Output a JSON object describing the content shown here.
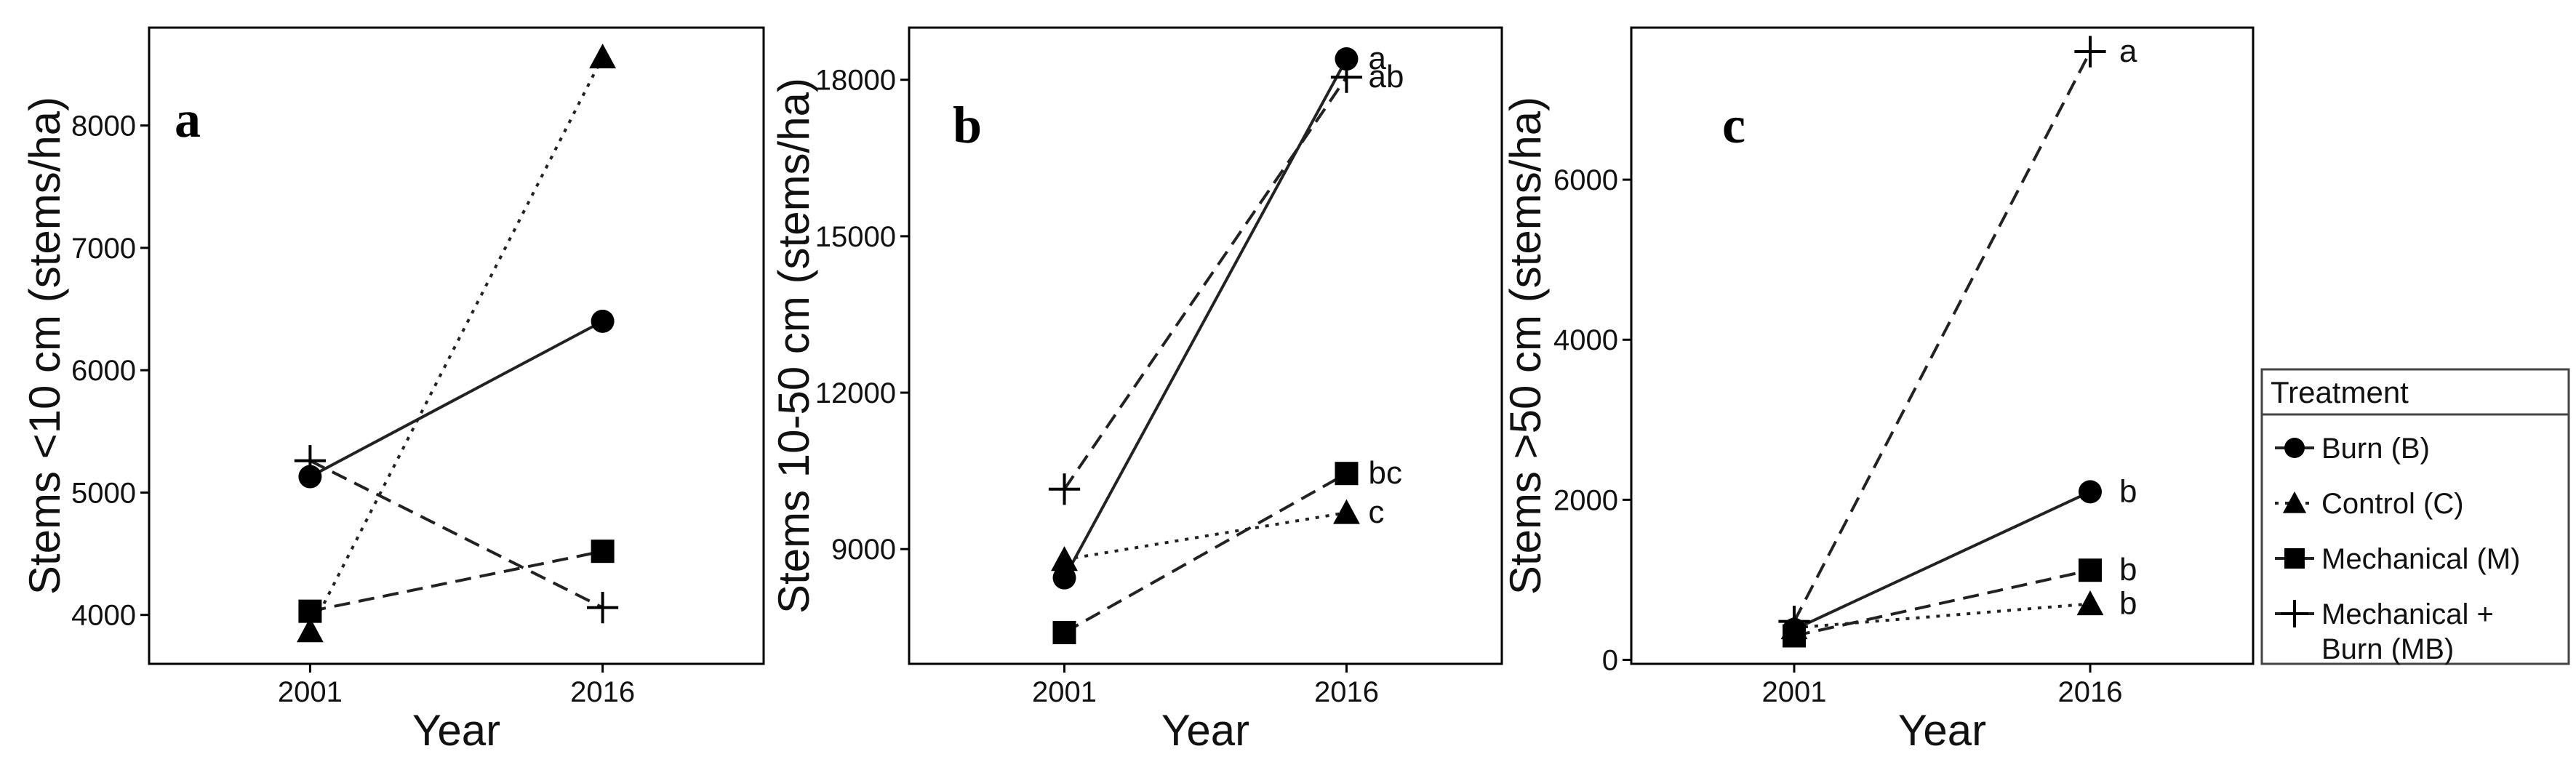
{
  "chart_data": [
    {
      "type": "line",
      "panel_label": "a",
      "x": [
        "2001",
        "2016"
      ],
      "xlabel": "Year",
      "ylabel": "Stems <10 cm (stems/ha)",
      "ylim": [
        3600,
        8800
      ],
      "yticks": [
        4000,
        5000,
        6000,
        7000,
        8000
      ],
      "series": [
        {
          "name": "Burn (B)",
          "values": [
            5130,
            6400
          ],
          "marker": "circle",
          "line": "solid"
        },
        {
          "name": "Control (C)",
          "values": [
            3870,
            8560
          ],
          "marker": "triangle",
          "line": "dotted"
        },
        {
          "name": "Mechanical (M)",
          "values": [
            4030,
            4520
          ],
          "marker": "square",
          "line": "dashed"
        },
        {
          "name": "Mechanical + Burn (MB)",
          "values": [
            5260,
            4060
          ],
          "marker": "plus",
          "line": "dashed"
        }
      ],
      "significance_labels": []
    },
    {
      "type": "line",
      "panel_label": "b",
      "x": [
        "2001",
        "2016"
      ],
      "xlabel": "Year",
      "ylabel": "Stems 10-50 cm (stems/ha)",
      "ylim": [
        6800,
        19000
      ],
      "yticks": [
        9000,
        12000,
        15000,
        18000
      ],
      "series": [
        {
          "name": "Burn (B)",
          "values": [
            8450,
            18400
          ],
          "marker": "circle",
          "line": "solid"
        },
        {
          "name": "Control (C)",
          "values": [
            8800,
            9700
          ],
          "marker": "triangle",
          "line": "dotted"
        },
        {
          "name": "Mechanical (M)",
          "values": [
            7400,
            10450
          ],
          "marker": "square",
          "line": "dashed"
        },
        {
          "name": "Mechanical + Burn (MB)",
          "values": [
            10150,
            18050
          ],
          "marker": "plus",
          "line": "dashed"
        }
      ],
      "significance_labels": [
        {
          "series": "Burn (B)",
          "text": "a"
        },
        {
          "series": "Mechanical + Burn (MB)",
          "text": "ab"
        },
        {
          "series": "Mechanical (M)",
          "text": "bc"
        },
        {
          "series": "Control (C)",
          "text": "c"
        }
      ]
    },
    {
      "type": "line",
      "panel_label": "c",
      "x": [
        "2001",
        "2016"
      ],
      "xlabel": "Year",
      "ylabel": "Stems >50 cm (stems/ha)",
      "ylim": [
        -50,
        7900
      ],
      "yticks": [
        0,
        2000,
        4000,
        6000
      ],
      "series": [
        {
          "name": "Burn (B)",
          "values": [
            380,
            2100
          ],
          "marker": "circle",
          "line": "solid"
        },
        {
          "name": "Control (C)",
          "values": [
            400,
            700
          ],
          "marker": "triangle",
          "line": "dotted"
        },
        {
          "name": "Mechanical (M)",
          "values": [
            300,
            1120
          ],
          "marker": "square",
          "line": "dashed"
        },
        {
          "name": "Mechanical + Burn (MB)",
          "values": [
            480,
            7600
          ],
          "marker": "plus",
          "line": "dashed"
        }
      ],
      "significance_labels": [
        {
          "series": "Mechanical + Burn (MB)",
          "text": "a"
        },
        {
          "series": "Burn (B)",
          "text": "b"
        },
        {
          "series": "Mechanical (M)",
          "text": "b"
        },
        {
          "series": "Control (C)",
          "text": "b"
        }
      ]
    }
  ],
  "legend": {
    "title": "Treatment",
    "items": [
      {
        "label": "Burn (B)",
        "marker": "circle",
        "line": "solid"
      },
      {
        "label": "Control (C)",
        "marker": "triangle",
        "line": "dotted"
      },
      {
        "label": "Mechanical (M)",
        "marker": "square",
        "line": "dashed"
      },
      {
        "label": "Mechanical +",
        "label2": "Burn (MB)",
        "marker": "plus",
        "line": "dashed"
      }
    ]
  },
  "colors": {
    "line": "#222222",
    "marker": "#000000",
    "panel_border": "#000000"
  }
}
